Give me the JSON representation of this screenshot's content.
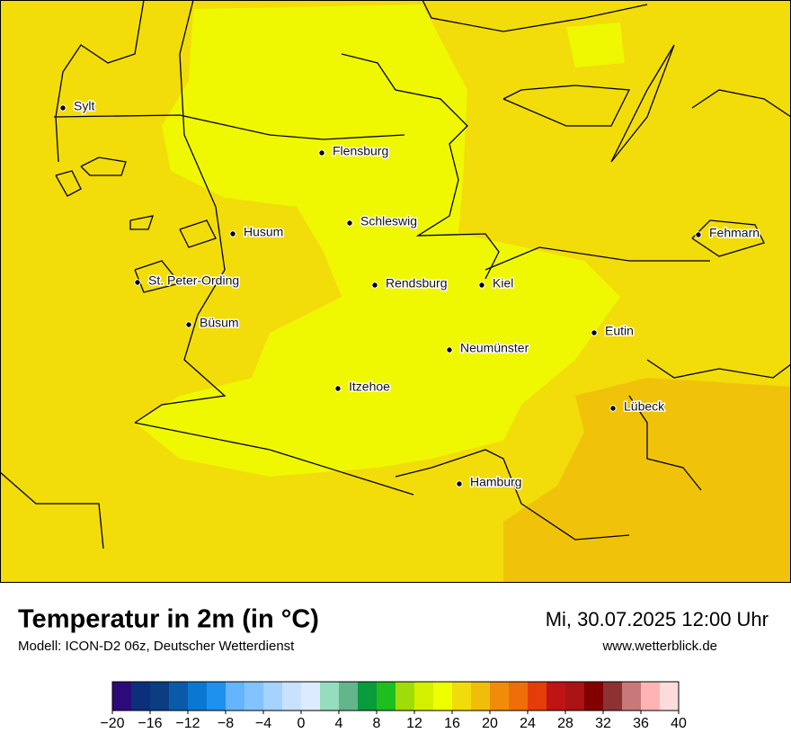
{
  "header": {
    "title": "Temperatur in 2m (in °C)",
    "subtitle": "Modell: ICON-D2 06z, Deutscher Wetterdienst",
    "datetime": "Mi, 30.07.2025 12:00 Uhr",
    "website": "www.wetterblick.de"
  },
  "cities": [
    "Sylt",
    "Flensburg",
    "Schleswig",
    "Husum",
    "St. Peter-Ording",
    "Rendsburg",
    "Kiel",
    "Büsum",
    "Neumünster",
    "Eutin",
    "Itzehoe",
    "Lübeck",
    "Hamburg",
    "Fehmarn"
  ],
  "colorbar": {
    "ticks": [
      {
        "value": -20,
        "label": "−20"
      },
      {
        "value": -16,
        "label": "−16"
      },
      {
        "value": -12,
        "label": "−12"
      },
      {
        "value": -8,
        "label": "−8"
      },
      {
        "value": -4,
        "label": "−4"
      },
      0,
      4,
      8,
      12,
      16,
      20,
      24,
      28,
      32,
      36,
      40
    ],
    "colors": [
      "#2d0a7a",
      "#0b2f7a",
      "#0a3d82",
      "#0a5aaa",
      "#0a78d2",
      "#1e90f0",
      "#64b4ff",
      "#82c3ff",
      "#a5d2ff",
      "#c8e1ff",
      "#dcebff",
      "#96dcbe",
      "#64b48c",
      "#0a9b3c",
      "#1ebe1e",
      "#a0dc0a",
      "#d2f000",
      "#f0ff00",
      "#f0dc0a",
      "#f0be0a",
      "#f08c0a",
      "#f06e0a",
      "#e63c0a",
      "#be1414",
      "#aa1414",
      "#820000",
      "#8c3232",
      "#c87878",
      "#ffb4b4",
      "#ffdcdc"
    ]
  }
}
